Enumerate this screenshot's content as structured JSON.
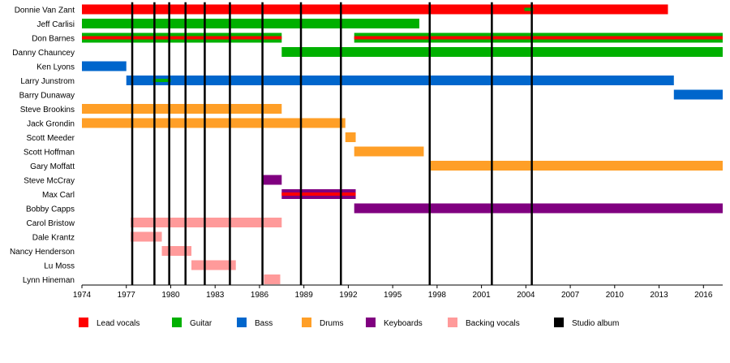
{
  "chart_data": {
    "type": "timeline",
    "x_range": [
      1974,
      2017.3
    ],
    "x_ticks": [
      "1974",
      "1977",
      "1980",
      "1983",
      "1986",
      "1989",
      "1992",
      "1995",
      "1998",
      "2001",
      "2004",
      "2007",
      "2010",
      "2013",
      "2016"
    ],
    "colors": {
      "Lead vocals": "#ff0000",
      "Guitar": "#00b000",
      "Bass": "#0066cc",
      "Drums": "#ff9f27",
      "Keyboards": "#800080",
      "Backing vocals": "#ff9a9a",
      "Studio album": "#000000"
    },
    "legend": [
      "Lead vocals",
      "Guitar",
      "Bass",
      "Drums",
      "Keyboards",
      "Backing vocals",
      "Studio album"
    ],
    "members": [
      {
        "name": "Donnie Van Zant",
        "bars": [
          {
            "role": "Lead vocals",
            "start": 1974.0,
            "end": 2013.6
          },
          {
            "role": "Guitar",
            "start": 2003.9,
            "end": 2004.5,
            "thin": true
          }
        ]
      },
      {
        "name": "Jeff Carlisi",
        "bars": [
          {
            "role": "Guitar",
            "start": 1974.0,
            "end": 1996.8
          }
        ]
      },
      {
        "name": "Don Barnes",
        "bars": [
          {
            "role": "Guitar",
            "start": 1974.0,
            "end": 1987.5
          },
          {
            "role": "Lead vocals",
            "start": 1974.0,
            "end": 1987.5,
            "thin": true
          },
          {
            "role": "Guitar",
            "start": 1992.4,
            "end": 2017.3
          },
          {
            "role": "Lead vocals",
            "start": 1992.4,
            "end": 2017.3,
            "thin": true
          }
        ]
      },
      {
        "name": "Danny Chauncey",
        "bars": [
          {
            "role": "Guitar",
            "start": 1987.5,
            "end": 2017.3
          }
        ]
      },
      {
        "name": "Ken Lyons",
        "bars": [
          {
            "role": "Bass",
            "start": 1974.0,
            "end": 1977.0
          }
        ]
      },
      {
        "name": "Larry Junstrom",
        "bars": [
          {
            "role": "Bass",
            "start": 1977.0,
            "end": 2014.0
          },
          {
            "role": "Guitar",
            "start": 1978.8,
            "end": 1980.0,
            "thin": true
          }
        ]
      },
      {
        "name": "Barry Dunaway",
        "bars": [
          {
            "role": "Bass",
            "start": 2014.0,
            "end": 2017.3
          }
        ]
      },
      {
        "name": "Steve Brookins",
        "bars": [
          {
            "role": "Drums",
            "start": 1974.0,
            "end": 1987.5
          }
        ]
      },
      {
        "name": "Jack Grondin",
        "bars": [
          {
            "role": "Drums",
            "start": 1974.0,
            "end": 1991.8
          }
        ]
      },
      {
        "name": "Scott Meeder",
        "bars": [
          {
            "role": "Drums",
            "start": 1991.8,
            "end": 1992.5
          }
        ]
      },
      {
        "name": "Scott Hoffman",
        "bars": [
          {
            "role": "Drums",
            "start": 1992.4,
            "end": 1997.1
          }
        ]
      },
      {
        "name": "Gary Moffatt",
        "bars": [
          {
            "role": "Drums",
            "start": 1997.5,
            "end": 2017.3
          }
        ]
      },
      {
        "name": "Steve McCray",
        "bars": [
          {
            "role": "Keyboards",
            "start": 1986.2,
            "end": 1987.5
          }
        ]
      },
      {
        "name": "Max Carl",
        "bars": [
          {
            "role": "Keyboards",
            "start": 1987.5,
            "end": 1992.5
          },
          {
            "role": "Lead vocals",
            "start": 1987.5,
            "end": 1992.5,
            "thin": true
          }
        ]
      },
      {
        "name": "Bobby Capps",
        "bars": [
          {
            "role": "Keyboards",
            "start": 1992.4,
            "end": 2017.3
          }
        ]
      },
      {
        "name": "Carol Bristow",
        "bars": [
          {
            "role": "Backing vocals",
            "start": 1977.3,
            "end": 1987.5
          }
        ]
      },
      {
        "name": "Dale Krantz",
        "bars": [
          {
            "role": "Backing vocals",
            "start": 1977.3,
            "end": 1979.4
          }
        ]
      },
      {
        "name": "Nancy Henderson",
        "bars": [
          {
            "role": "Backing vocals",
            "start": 1979.4,
            "end": 1981.4
          }
        ]
      },
      {
        "name": "Lu Moss",
        "bars": [
          {
            "role": "Backing vocals",
            "start": 1981.4,
            "end": 1984.4
          }
        ]
      },
      {
        "name": "Lynn Hineman",
        "bars": [
          {
            "role": "Backing vocals",
            "start": 1986.3,
            "end": 1987.4
          }
        ]
      }
    ],
    "studio_albums": [
      1977.4,
      1978.9,
      1979.9,
      1981.0,
      1982.3,
      1984.0,
      1986.2,
      1988.8,
      1991.5,
      1997.5,
      2001.7,
      2004.4
    ]
  }
}
